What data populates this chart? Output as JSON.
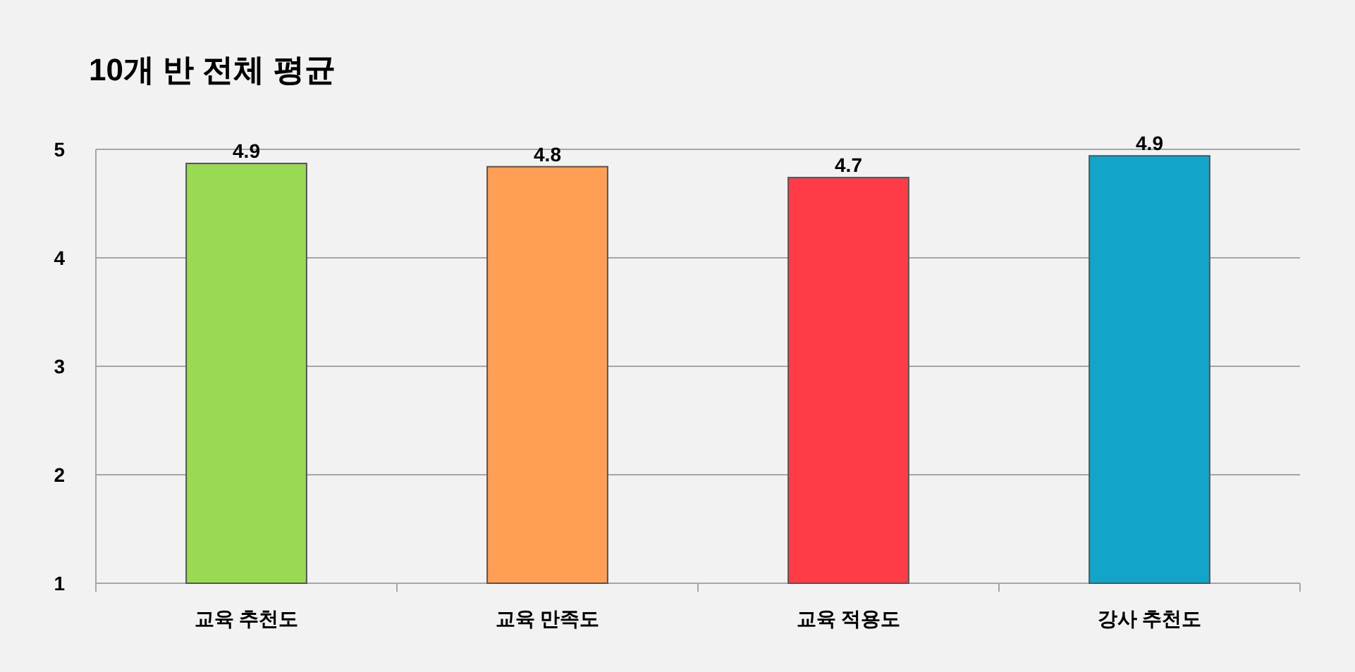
{
  "chart_data": {
    "type": "bar",
    "title": "10개 반 전체 평균",
    "categories": [
      "교육 추천도",
      "교육 만족도",
      "교육 적용도",
      "강사 추천도"
    ],
    "values": [
      4.87,
      4.84,
      4.74,
      4.94
    ],
    "value_labels": [
      "4.9",
      "4.8",
      "4.7",
      "4.9"
    ],
    "colors": [
      "#9ad952",
      "#ff9f55",
      "#ff3b47",
      "#12a5c9"
    ],
    "ylim": [
      1,
      5
    ],
    "yticks": [
      1,
      2,
      3,
      4,
      5
    ],
    "grid": "y"
  }
}
